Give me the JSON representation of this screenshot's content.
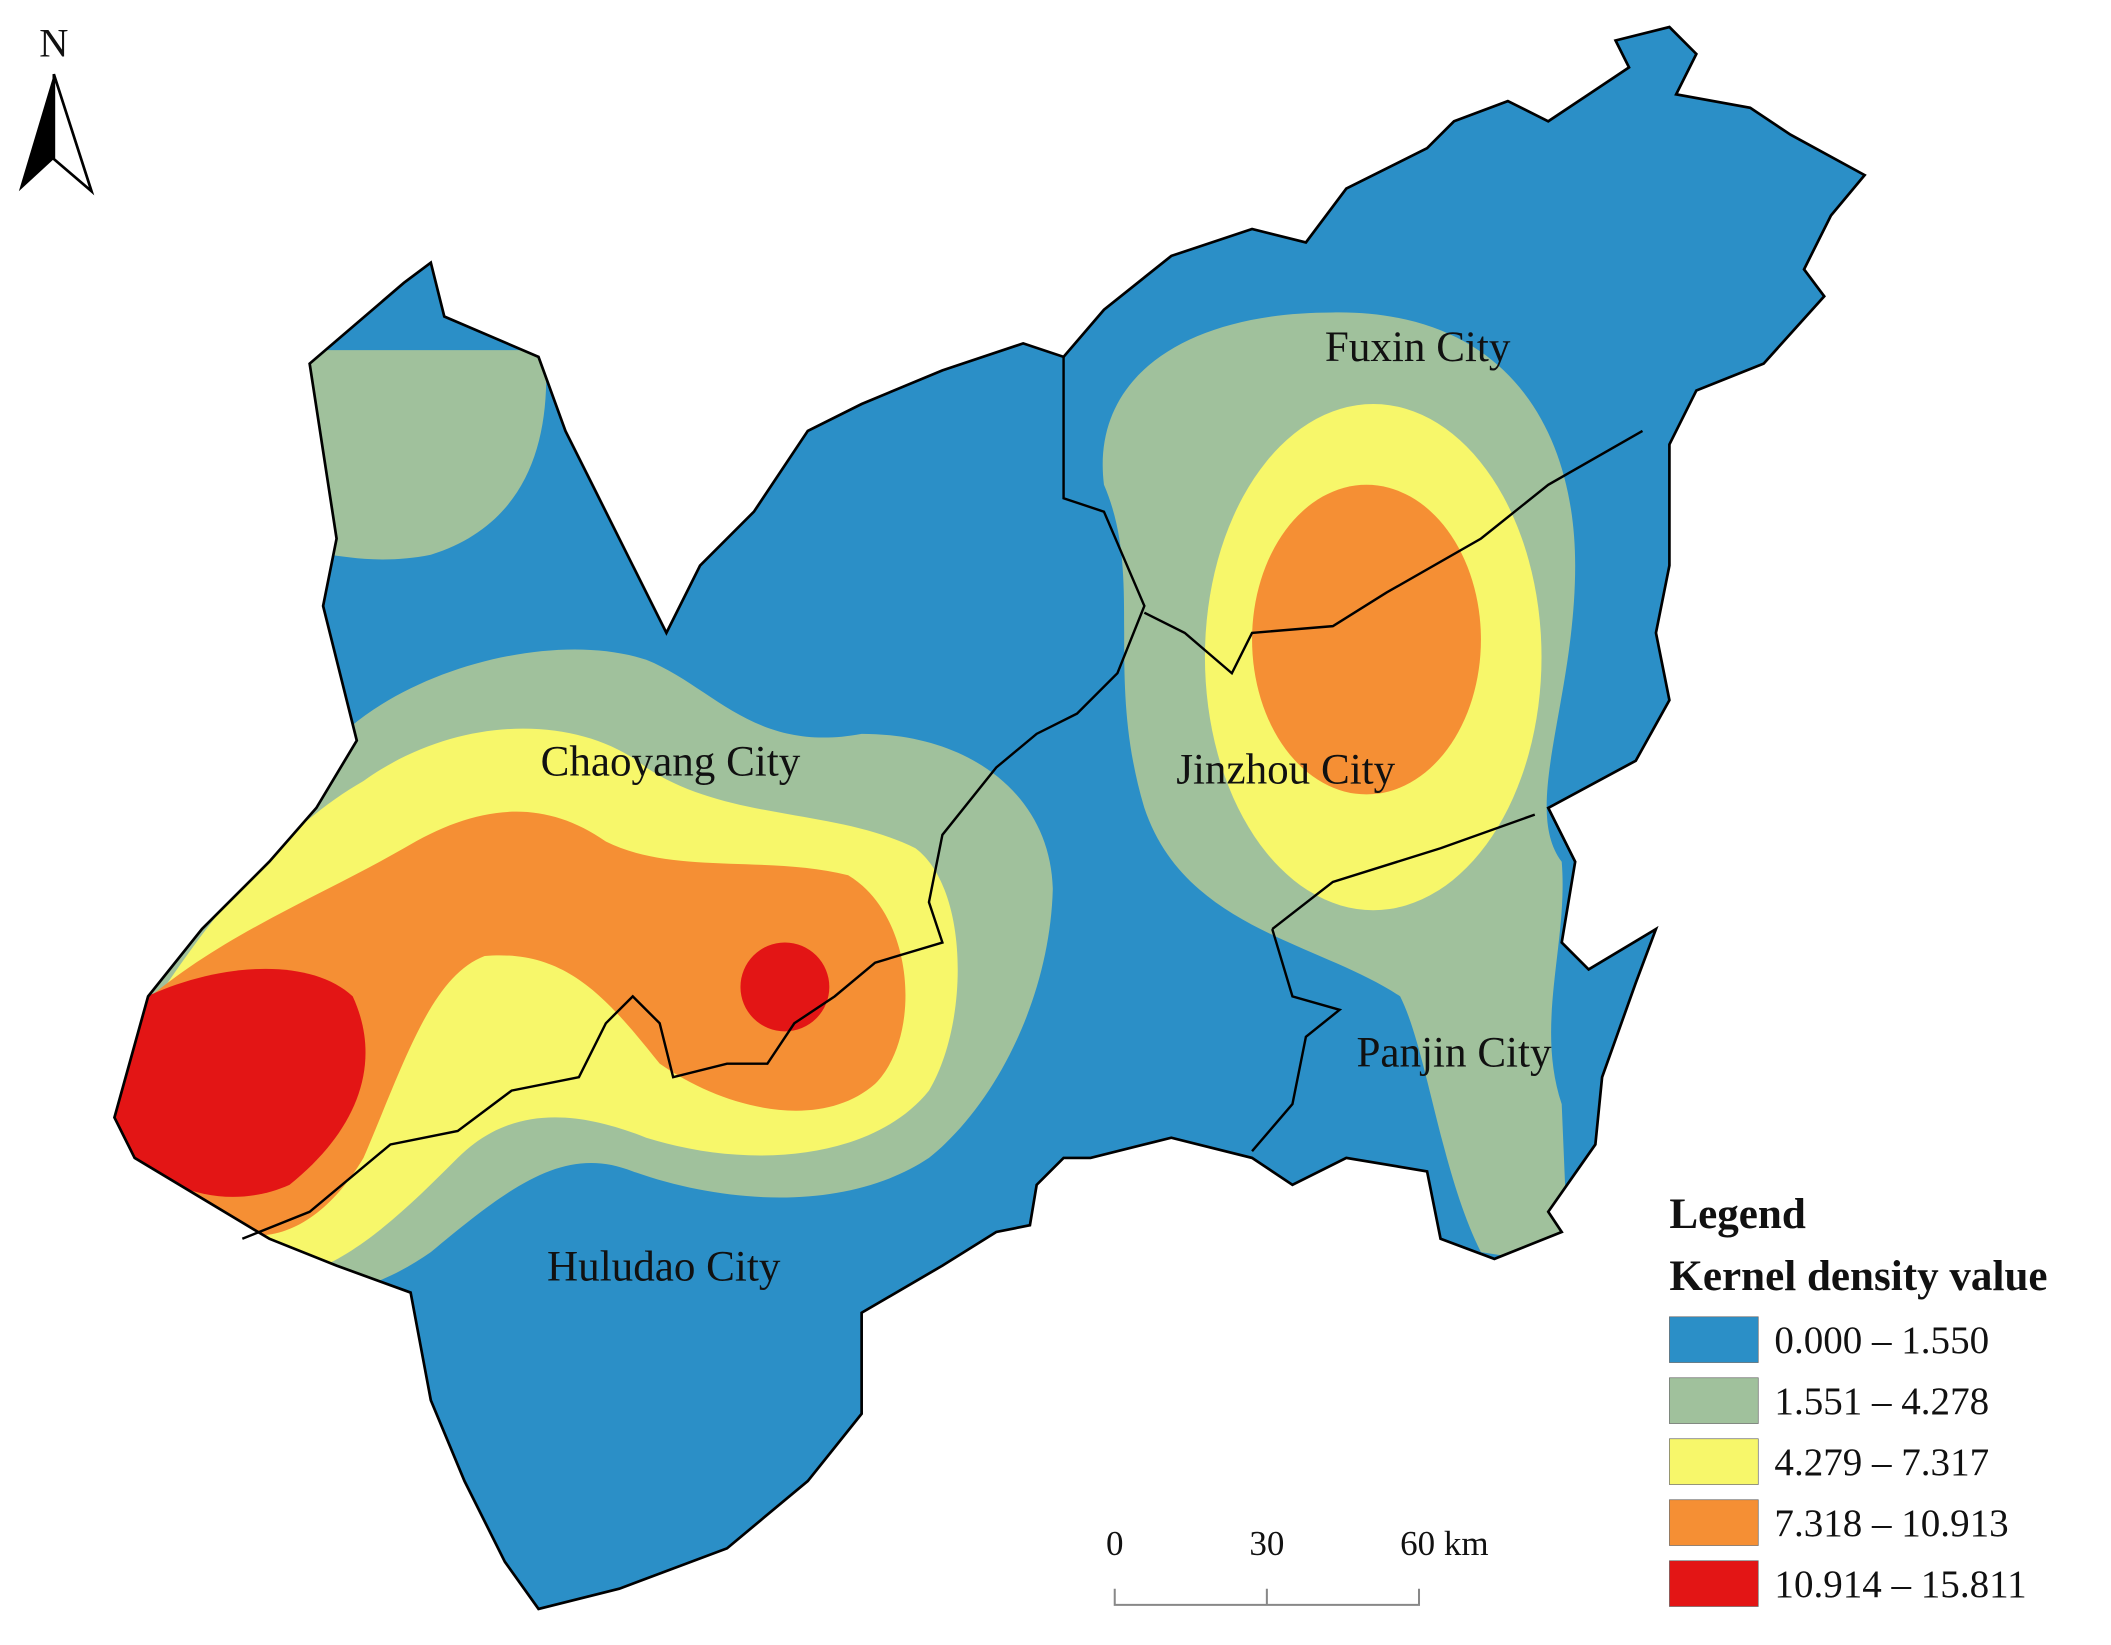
{
  "north_label": "N",
  "cities": [
    {
      "label": "Fuxin City"
    },
    {
      "label": "Chaoyang City"
    },
    {
      "label": "Jinzhou City"
    },
    {
      "label": "Panjin City"
    },
    {
      "label": "Huludao City"
    }
  ],
  "legend": {
    "title": "Legend",
    "subtitle": "Kernel density value",
    "items": [
      {
        "label": "0.000 – 1.550",
        "color": "#2b8fc7"
      },
      {
        "label": "1.551 – 4.278",
        "color": "#a0c19c"
      },
      {
        "label": "4.279 – 7.317",
        "color": "#f7f76a"
      },
      {
        "label": "7.318 – 10.913",
        "color": "#f58f34"
      },
      {
        "label": "10.914 – 15.811",
        "color": "#e31515"
      }
    ]
  },
  "scale_bar": {
    "labels": [
      "0",
      "30",
      "60 km"
    ]
  }
}
